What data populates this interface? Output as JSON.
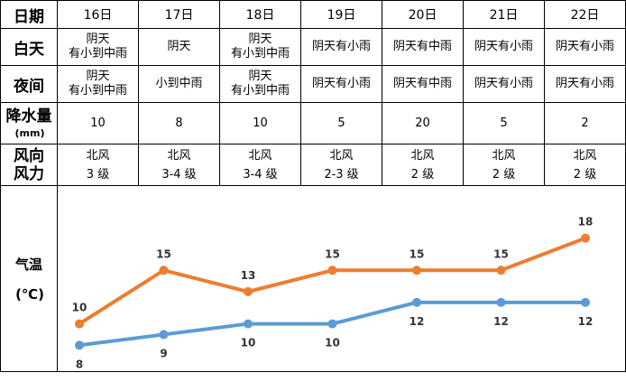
{
  "table": {
    "row_labels": {
      "date": "日期",
      "day": "白天",
      "night": "夜间",
      "rain": "降水量",
      "rain_unit": "(mm)",
      "wind_dir": "风向",
      "wind_force": "风力",
      "temp": "气温",
      "temp_unit": "(℃)"
    },
    "days": [
      {
        "date": "16日",
        "day_l1": "阴天",
        "day_l2": "有小到中雨",
        "night_l1": "阴天",
        "night_l2": "有小到中雨",
        "rain": "10",
        "wind_dir": "北风",
        "wind_force": "3 级"
      },
      {
        "date": "17日",
        "day_l1": "阴天",
        "day_l2": "",
        "night_l1": "小到中雨",
        "night_l2": "",
        "rain": "8",
        "wind_dir": "北风",
        "wind_force": "3-4 级"
      },
      {
        "date": "18日",
        "day_l1": "阴天",
        "day_l2": "有小到中雨",
        "night_l1": "阴天",
        "night_l2": "有小到中雨",
        "rain": "10",
        "wind_dir": "北风",
        "wind_force": "3-4 级"
      },
      {
        "date": "19日",
        "day_l1": "阴天有小雨",
        "day_l2": "",
        "night_l1": "阴天有小雨",
        "night_l2": "",
        "rain": "5",
        "wind_dir": "北风",
        "wind_force": "2-3 级"
      },
      {
        "date": "20日",
        "day_l1": "阴天有中雨",
        "day_l2": "",
        "night_l1": "阴天有中雨",
        "night_l2": "",
        "rain": "20",
        "wind_dir": "北风",
        "wind_force": "2 级"
      },
      {
        "date": "21日",
        "day_l1": "阴天有小雨",
        "day_l2": "",
        "night_l1": "阴天有小雨",
        "night_l2": "",
        "rain": "5",
        "wind_dir": "北风",
        "wind_force": "2 级"
      },
      {
        "date": "22日",
        "day_l1": "阴天有小雨",
        "day_l2": "",
        "night_l1": "阴天有小雨",
        "night_l2": "",
        "rain": "2",
        "wind_dir": "北风",
        "wind_force": "2 级"
      }
    ]
  },
  "chart_data": {
    "type": "line",
    "categories": [
      "16日",
      "17日",
      "18日",
      "19日",
      "20日",
      "21日",
      "22日"
    ],
    "series": [
      {
        "values": [
          10,
          15,
          13,
          15,
          15,
          15,
          18
        ],
        "color": "#ed7d31"
      },
      {
        "values": [
          8,
          9,
          10,
          10,
          12,
          12,
          12
        ],
        "color": "#5b9bd5"
      }
    ],
    "ylim": [
      6,
      20
    ],
    "grid": false,
    "legend": "none"
  }
}
